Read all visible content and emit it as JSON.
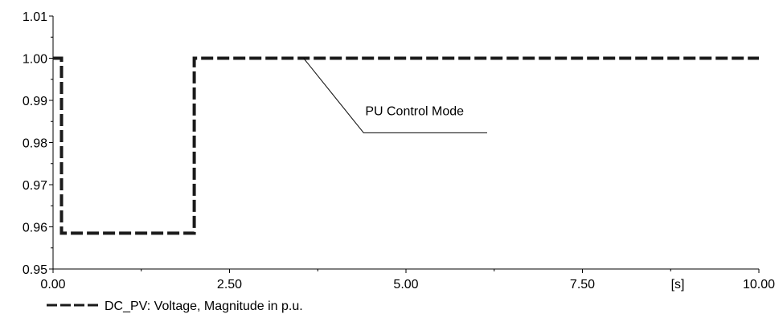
{
  "chart_data": {
    "type": "line",
    "title": "",
    "xlabel": "",
    "ylabel": "",
    "x_unit_label": "[s]",
    "xlim": [
      0,
      10
    ],
    "ylim": [
      0.95,
      1.01
    ],
    "x_ticks": [
      0,
      2.5,
      5,
      7.5,
      10
    ],
    "x_tick_labels": [
      "0.00",
      "2.50",
      "5.00",
      "7.50",
      "10.00"
    ],
    "y_ticks": [
      0.95,
      0.96,
      0.97,
      0.98,
      0.99,
      1.0,
      1.01
    ],
    "y_tick_labels": [
      "0.95",
      "0.96",
      "0.97",
      "0.98",
      "0.99",
      "1.00",
      "1.01"
    ],
    "grid": false,
    "legend_position": "bottom-left",
    "series": [
      {
        "name": "DC_PV: Voltage, Magnitude in p.u.",
        "color": "#1a1a1a",
        "line_style": "dashed",
        "x": [
          0.0,
          0.12,
          0.12,
          2.0,
          2.0,
          10.0
        ],
        "y": [
          1.0,
          1.0,
          0.9585,
          0.9585,
          1.0,
          1.0
        ]
      }
    ],
    "annotations": [
      {
        "text": "PU Control Mode",
        "target": [
          3.55,
          1.0
        ],
        "elbow": [
          4.4,
          0.9823
        ],
        "end": [
          6.15,
          0.9823
        ]
      }
    ]
  }
}
